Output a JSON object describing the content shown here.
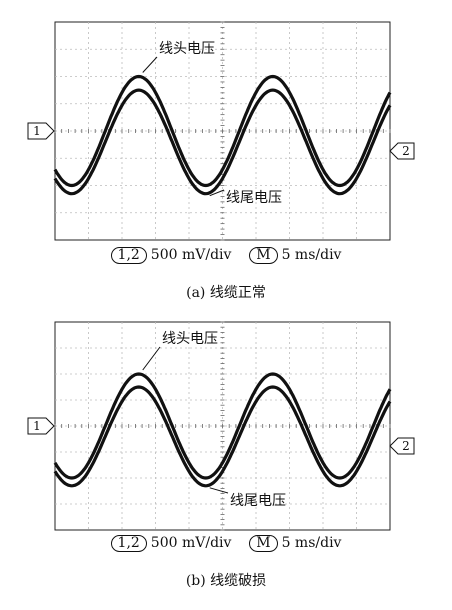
{
  "chart_data": [
    {
      "type": "line",
      "annotations": [
        {
          "text": "线头电压",
          "target": "head"
        },
        {
          "text": "线尾电压",
          "target": "tail"
        }
      ],
      "channel_markers": {
        "left": "1",
        "right": "2"
      },
      "scale": {
        "channels": "1,2",
        "volts": "500 mV/div",
        "math": "M",
        "time": "5 ms/div"
      },
      "caption": "(a)  线缆正常",
      "grid": true,
      "xlim": [
        0,
        50
      ],
      "ylim": [
        -2000,
        2000
      ],
      "series": [
        {
          "target": "head",
          "amplitude_mV": 1000,
          "offset_mV": 0,
          "period_ms": 20,
          "trough_time_ms": 2.5
        },
        {
          "target": "tail",
          "amplitude_mV": 950,
          "offset_mV": -200,
          "period_ms": 20,
          "trough_time_ms": 2.5
        }
      ]
    },
    {
      "type": "line",
      "annotations": [
        {
          "text": "线头电压",
          "target": "head"
        },
        {
          "text": "线尾电压",
          "target": "tail"
        }
      ],
      "channel_markers": {
        "left": "1",
        "right": "2"
      },
      "scale": {
        "channels": "1,2",
        "volts": "500 mV/div",
        "math": "M",
        "time": "5 ms/div"
      },
      "caption": "(b)  线缆破损",
      "grid": true,
      "xlim": [
        0,
        50
      ],
      "ylim": [
        -2000,
        2000
      ],
      "series": [
        {
          "target": "head",
          "amplitude_mV": 1000,
          "offset_mV": 0,
          "period_ms": 20,
          "trough_time_ms": 2.5
        },
        {
          "target": "tail",
          "amplitude_mV": 950,
          "offset_mV": -200,
          "period_ms": 20,
          "trough_time_ms": 2.5
        }
      ]
    }
  ]
}
